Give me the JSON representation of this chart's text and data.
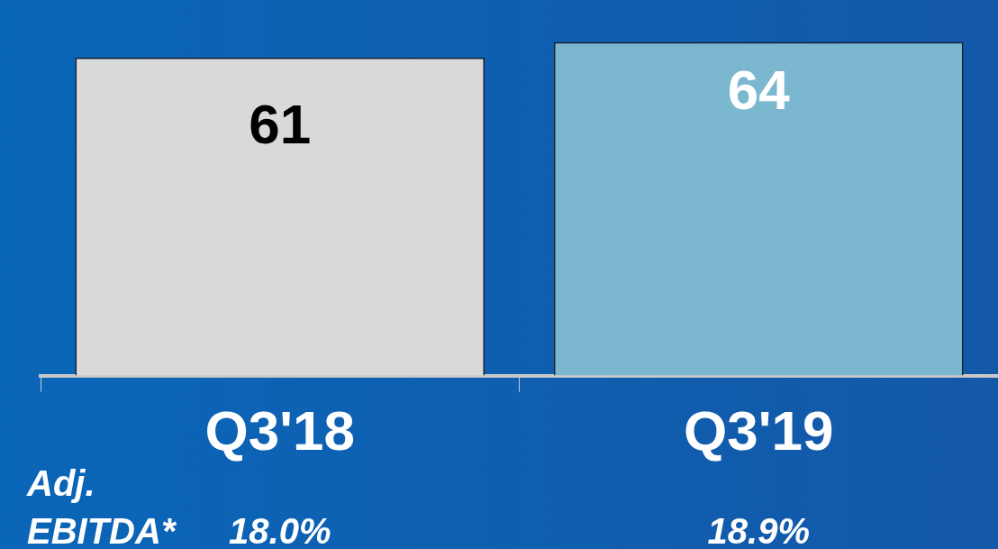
{
  "chart_data": {
    "type": "bar",
    "categories": [
      "Q3'18",
      "Q3'19"
    ],
    "values": [
      61,
      64
    ],
    "colors": [
      "#d9d9d9",
      "#7bb7cf"
    ],
    "data_labels": true,
    "grid": false,
    "legend": false,
    "annotations": [
      "Adj. EBITDA*",
      "18.0%",
      "18.9%"
    ]
  }
}
